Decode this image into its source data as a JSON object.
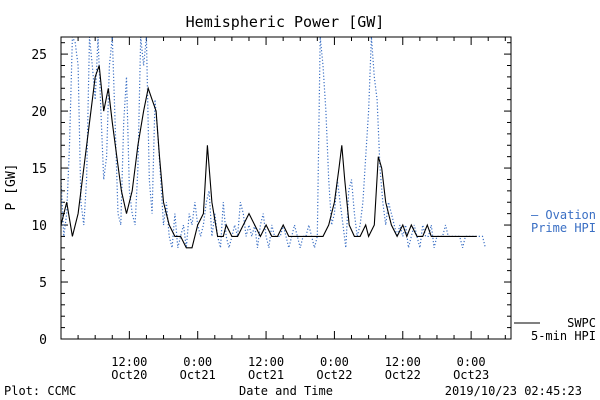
{
  "chart_data": {
    "type": "line",
    "title": "Hemispheric Power [GW]",
    "xlabel": "Date and Time",
    "ylabel": "P [GW]",
    "ylim": [
      0,
      26.5
    ],
    "yticks": [
      0,
      5,
      10,
      15,
      20,
      25
    ],
    "xlim_hours": [
      0,
      79
    ],
    "x_ticks": [
      {
        "hour": 12,
        "time": "12:00",
        "date": "Oct20"
      },
      {
        "hour": 24,
        "time": "0:00",
        "date": "Oct21"
      },
      {
        "hour": 36,
        "time": "12:00",
        "date": "Oct21"
      },
      {
        "hour": 48,
        "time": "0:00",
        "date": "Oct22"
      },
      {
        "hour": 60,
        "time": "12:00",
        "date": "Oct22"
      },
      {
        "hour": 72,
        "time": "0:00",
        "date": "Oct23"
      }
    ],
    "series": [
      {
        "name": "SWPC 5-min HPI",
        "legend_line1": "SWPC",
        "legend_line2": "5-min HPI",
        "color": "#000000",
        "style": "solid",
        "points": [
          [
            0,
            10
          ],
          [
            1,
            12
          ],
          [
            2,
            9
          ],
          [
            3,
            11
          ],
          [
            4,
            15
          ],
          [
            5,
            19
          ],
          [
            6,
            23
          ],
          [
            6.7,
            24
          ],
          [
            7.5,
            20
          ],
          [
            8.3,
            22
          ],
          [
            9,
            19
          ],
          [
            9.8,
            16
          ],
          [
            10.6,
            13
          ],
          [
            11.5,
            11
          ],
          [
            12.5,
            13
          ],
          [
            13.5,
            17
          ],
          [
            14.5,
            20
          ],
          [
            15.3,
            22
          ],
          [
            16,
            21
          ],
          [
            16.7,
            20
          ],
          [
            17.3,
            16
          ],
          [
            18,
            12
          ],
          [
            19,
            10
          ],
          [
            20,
            9
          ],
          [
            21,
            9
          ],
          [
            22,
            8
          ],
          [
            23,
            8
          ],
          [
            24,
            10
          ],
          [
            25,
            11
          ],
          [
            25.7,
            17
          ],
          [
            26.5,
            12
          ],
          [
            27.5,
            9
          ],
          [
            28.5,
            9
          ],
          [
            29,
            10
          ],
          [
            30,
            9
          ],
          [
            31,
            9
          ],
          [
            32,
            10
          ],
          [
            33,
            11
          ],
          [
            34,
            10
          ],
          [
            35,
            9
          ],
          [
            36,
            10
          ],
          [
            37,
            9
          ],
          [
            38,
            9
          ],
          [
            39,
            10
          ],
          [
            40,
            9
          ],
          [
            41,
            9
          ],
          [
            42,
            9
          ],
          [
            43,
            9
          ],
          [
            44,
            9
          ],
          [
            45,
            9
          ],
          [
            46,
            9
          ],
          [
            47,
            10
          ],
          [
            48,
            12
          ],
          [
            48.8,
            15
          ],
          [
            49.3,
            17
          ],
          [
            49.8,
            14
          ],
          [
            50.6,
            10
          ],
          [
            51.5,
            9
          ],
          [
            52.5,
            9
          ],
          [
            53.5,
            10
          ],
          [
            54,
            9
          ],
          [
            55,
            10
          ],
          [
            55.7,
            16
          ],
          [
            56.3,
            15
          ],
          [
            57,
            12
          ],
          [
            58,
            10
          ],
          [
            59,
            9
          ],
          [
            60,
            10
          ],
          [
            60.7,
            9
          ],
          [
            61.5,
            10
          ],
          [
            62.5,
            9
          ],
          [
            63.5,
            9
          ],
          [
            64.3,
            10
          ],
          [
            65,
            9
          ],
          [
            66,
            9
          ],
          [
            67,
            9
          ],
          [
            68,
            9
          ],
          [
            69,
            9
          ],
          [
            70,
            9
          ],
          [
            71,
            9
          ],
          [
            72,
            9
          ],
          [
            73,
            9
          ]
        ]
      },
      {
        "name": "Ovation Prime HPI",
        "legend_line1": "— Ovation",
        "legend_line2": "Prime HPI",
        "color": "#3a6fc4",
        "style": "dotted",
        "points": [
          [
            0,
            14
          ],
          [
            0.5,
            9
          ],
          [
            1,
            11
          ],
          [
            1.5,
            17
          ],
          [
            2,
            26.5
          ],
          [
            2.5,
            26
          ],
          [
            3,
            24
          ],
          [
            3.5,
            12
          ],
          [
            4,
            10
          ],
          [
            4.5,
            14
          ],
          [
            5,
            26.5
          ],
          [
            5.5,
            24
          ],
          [
            6,
            21
          ],
          [
            6.5,
            26.5
          ],
          [
            7,
            20
          ],
          [
            7.5,
            14
          ],
          [
            8,
            16
          ],
          [
            8.5,
            24
          ],
          [
            9,
            26.5
          ],
          [
            9.5,
            19
          ],
          [
            10,
            11
          ],
          [
            10.5,
            10
          ],
          [
            11,
            19
          ],
          [
            11.5,
            23
          ],
          [
            12,
            13
          ],
          [
            12.5,
            11
          ],
          [
            13,
            10
          ],
          [
            13.5,
            15
          ],
          [
            14,
            26.5
          ],
          [
            14.5,
            24
          ],
          [
            15,
            26.5
          ],
          [
            15.5,
            14
          ],
          [
            16,
            11
          ],
          [
            16.5,
            21
          ],
          [
            17,
            18
          ],
          [
            17.5,
            14
          ],
          [
            18,
            10
          ],
          [
            18.5,
            12
          ],
          [
            19,
            9
          ],
          [
            19.5,
            8
          ],
          [
            20,
            11
          ],
          [
            20.5,
            8
          ],
          [
            21,
            9
          ],
          [
            21.5,
            10
          ],
          [
            22,
            8
          ],
          [
            22.5,
            11
          ],
          [
            23,
            10
          ],
          [
            23.5,
            12
          ],
          [
            24,
            10
          ],
          [
            24.5,
            9
          ],
          [
            25,
            10
          ],
          [
            25.5,
            12
          ],
          [
            26,
            13
          ],
          [
            26.5,
            9
          ],
          [
            27,
            11
          ],
          [
            27.5,
            9
          ],
          [
            28,
            8
          ],
          [
            28.5,
            12
          ],
          [
            29,
            9
          ],
          [
            29.5,
            8
          ],
          [
            30,
            9
          ],
          [
            30.5,
            10
          ],
          [
            31,
            9
          ],
          [
            31.5,
            12
          ],
          [
            32,
            11
          ],
          [
            32.5,
            9
          ],
          [
            33,
            10
          ],
          [
            33.5,
            9
          ],
          [
            34,
            10
          ],
          [
            34.5,
            8
          ],
          [
            35,
            10
          ],
          [
            35.5,
            11
          ],
          [
            36,
            9
          ],
          [
            36.5,
            8
          ],
          [
            37,
            10
          ],
          [
            37.5,
            9
          ],
          [
            38,
            9
          ],
          [
            38.5,
            9
          ],
          [
            39,
            10
          ],
          [
            39.5,
            9
          ],
          [
            40,
            8
          ],
          [
            40.5,
            9
          ],
          [
            41,
            10
          ],
          [
            41.5,
            9
          ],
          [
            42,
            8
          ],
          [
            42.5,
            9
          ],
          [
            43,
            9
          ],
          [
            43.5,
            10
          ],
          [
            44,
            9
          ],
          [
            44.5,
            8
          ],
          [
            45,
            9
          ],
          [
            45.5,
            26.5
          ],
          [
            46,
            24
          ],
          [
            46.5,
            20
          ],
          [
            47,
            14
          ],
          [
            47.5,
            10
          ],
          [
            48,
            11
          ],
          [
            48.5,
            14
          ],
          [
            49,
            12
          ],
          [
            49.5,
            10
          ],
          [
            50,
            8
          ],
          [
            50.5,
            13
          ],
          [
            51,
            14
          ],
          [
            51.5,
            11
          ],
          [
            52,
            9
          ],
          [
            52.5,
            10
          ],
          [
            53,
            12
          ],
          [
            53.5,
            16
          ],
          [
            54,
            20
          ],
          [
            54.5,
            26.5
          ],
          [
            55,
            23
          ],
          [
            55.5,
            21
          ],
          [
            56,
            15
          ],
          [
            56.5,
            12
          ],
          [
            57,
            10
          ],
          [
            57.5,
            12
          ],
          [
            58,
            11
          ],
          [
            58.5,
            10
          ],
          [
            59,
            9
          ],
          [
            59.5,
            10
          ],
          [
            60,
            9
          ],
          [
            60.5,
            10
          ],
          [
            61,
            8
          ],
          [
            61.5,
            9
          ],
          [
            62,
            10
          ],
          [
            62.5,
            9
          ],
          [
            63,
            8
          ],
          [
            63.5,
            10
          ],
          [
            64,
            9
          ],
          [
            64.5,
            9
          ],
          [
            65,
            10
          ],
          [
            65.5,
            8
          ],
          [
            66,
            9
          ],
          [
            66.5,
            9
          ],
          [
            67,
            9
          ],
          [
            67.5,
            10
          ],
          [
            68,
            9
          ],
          [
            68.5,
            9
          ],
          [
            69,
            9
          ],
          [
            69.5,
            9
          ],
          [
            70,
            9
          ],
          [
            70.5,
            8
          ],
          [
            71,
            9
          ],
          [
            71.5,
            9
          ],
          [
            72,
            9
          ],
          [
            72.5,
            9
          ],
          [
            73,
            9
          ],
          [
            73.5,
            9
          ],
          [
            74,
            9
          ],
          [
            74.5,
            8
          ]
        ]
      }
    ],
    "legend_placement": "right",
    "grid": false
  },
  "footer": {
    "plot_by": "Plot: CCMC",
    "timestamp": "2019/10/23 02:45:23"
  }
}
